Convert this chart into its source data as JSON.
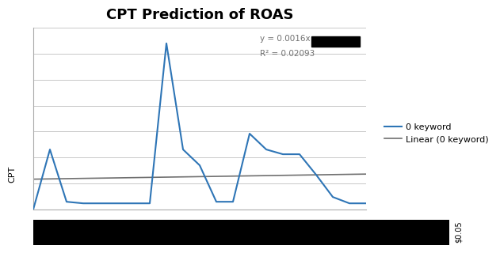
{
  "title": "CPT Prediction of ROAS",
  "xlabel": "CPT",
  "equation": "y = 0.0016x",
  "r_squared": "R² = 0.02093",
  "legend_line": "0 keyword",
  "legend_linear": "Linear (0 keyword)",
  "x_data": [
    0,
    1,
    2,
    3,
    4,
    5,
    6,
    7,
    8,
    9,
    10,
    11,
    12,
    13,
    14,
    15,
    16,
    17,
    18,
    19,
    20
  ],
  "y_data": [
    0.002,
    0.38,
    0.05,
    0.04,
    0.04,
    0.04,
    0.04,
    0.04,
    1.05,
    0.38,
    0.28,
    0.05,
    0.05,
    0.48,
    0.38,
    0.35,
    0.35,
    0.22,
    0.08,
    0.04,
    0.04
  ],
  "line_color": "#2E75B6",
  "linear_color": "#707070",
  "background_color": "#FFFFFF",
  "grid_color": "#C8C8C8",
  "annotation_color": "#707070",
  "ylim_min": 0,
  "ylim_max": 1.15,
  "title_fontsize": 13,
  "label_fontsize": 8,
  "legend_fontsize": 8,
  "bottom_bar_color": "#000000",
  "bottom_bar_label": "$0.05",
  "num_gridlines": 7,
  "slope": 0.0016
}
